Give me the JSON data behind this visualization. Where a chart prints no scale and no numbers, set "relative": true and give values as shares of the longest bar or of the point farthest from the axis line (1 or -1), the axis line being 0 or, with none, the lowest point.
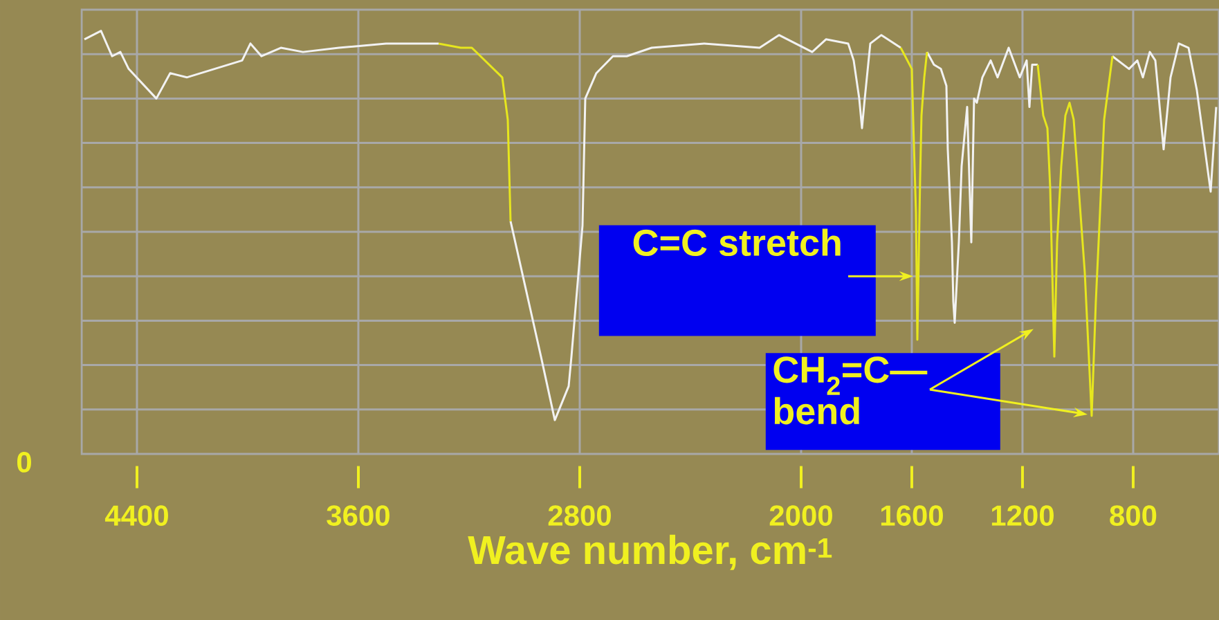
{
  "chart_data": {
    "type": "line",
    "relative": true,
    "xlabel": "Wave number, cm$^{-1}$",
    "xlim": [
      4600,
      490
    ],
    "xticks": [
      4400,
      3600,
      2800,
      2000,
      1600,
      1200,
      800
    ],
    "grid": true,
    "x": [
      4590,
      4530,
      4490,
      4460,
      4430,
      4330,
      4280,
      4220,
      4120,
      4020,
      3990,
      3950,
      3880,
      3800,
      3670,
      3500,
      3310,
      3230,
      3190,
      3080,
      3060,
      3050,
      2940,
      2890,
      2840,
      2830,
      2790,
      2780,
      2740,
      2680,
      2630,
      2540,
      2350,
      2150,
      2080,
      1960,
      1910,
      1830,
      1810,
      1790,
      1780,
      1770,
      1750,
      1710,
      1640,
      1600,
      1595,
      1585,
      1580,
      1570,
      1565,
      1555,
      1545,
      1520,
      1495,
      1475,
      1470,
      1455,
      1450,
      1445,
      1430,
      1420,
      1400,
      1385,
      1375,
      1365,
      1345,
      1315,
      1290,
      1250,
      1210,
      1185,
      1175,
      1165,
      1145,
      1125,
      1110,
      1100,
      1085,
      1075,
      1060,
      1045,
      1030,
      1015,
      995,
      975,
      950,
      935,
      920,
      905,
      875,
      815,
      785,
      765,
      740,
      720,
      690,
      665,
      635,
      600,
      570,
      520,
      500
    ],
    "series": [
      {
        "color": "#f2f2f2",
        "values": [
          0.98,
          1.0,
          0.94,
          0.95,
          0.91,
          0.84,
          0.9,
          0.89,
          0.91,
          0.93,
          0.97,
          0.94,
          0.96,
          0.95,
          0.96,
          0.97,
          0.97,
          null,
          null,
          null,
          null,
          0.55,
          0.23,
          0.08,
          0.16,
          0.23,
          0.54,
          0.84,
          0.9,
          0.94,
          0.94,
          0.96,
          0.97,
          0.96,
          0.99,
          0.95,
          0.98,
          0.97,
          0.93,
          0.84,
          0.77,
          0.84,
          0.97,
          0.99,
          0.96,
          null,
          null,
          null,
          null,
          null,
          null,
          null,
          0.95,
          0.92,
          0.91,
          0.87,
          0.72,
          0.5,
          0.36,
          0.31,
          0.5,
          0.68,
          0.82,
          0.5,
          0.84,
          0.83,
          0.89,
          0.93,
          0.89,
          0.96,
          0.89,
          0.93,
          0.82,
          0.92,
          0.92,
          null,
          null,
          null,
          null,
          null,
          null,
          null,
          null,
          null,
          null,
          null,
          null,
          null,
          null,
          null,
          0.94,
          0.91,
          0.93,
          0.89,
          0.95,
          0.93,
          0.72,
          0.89,
          0.97,
          0.96,
          0.86,
          0.62,
          0.82
        ]
      },
      {
        "color": "#e6e61e",
        "values": [
          null,
          null,
          null,
          null,
          null,
          null,
          null,
          null,
          null,
          null,
          null,
          null,
          null,
          null,
          null,
          null,
          0.97,
          0.96,
          0.96,
          0.89,
          0.79,
          0.55,
          null,
          null,
          null,
          null,
          null,
          null,
          null,
          null,
          null,
          null,
          null,
          null,
          null,
          null,
          null,
          null,
          null,
          null,
          null,
          null,
          null,
          null,
          0.96,
          0.91,
          0.79,
          0.57,
          0.27,
          0.65,
          0.8,
          0.89,
          0.95,
          null,
          null,
          null,
          null,
          null,
          null,
          null,
          null,
          null,
          null,
          null,
          null,
          null,
          null,
          null,
          null,
          null,
          null,
          null,
          null,
          null,
          0.92,
          0.8,
          0.77,
          0.63,
          0.23,
          0.5,
          0.68,
          0.8,
          0.83,
          0.79,
          0.61,
          0.43,
          0.09,
          0.36,
          0.57,
          0.79,
          0.94,
          null,
          null,
          null,
          null,
          null,
          null,
          null,
          null,
          null,
          null,
          null,
          null
        ]
      }
    ],
    "annotations": [
      "0",
      {
        "text": "C=C stretch",
        "x": 1580,
        "y": 0.42
      },
      "CH$_{2}$=C— bend"
    ]
  }
}
